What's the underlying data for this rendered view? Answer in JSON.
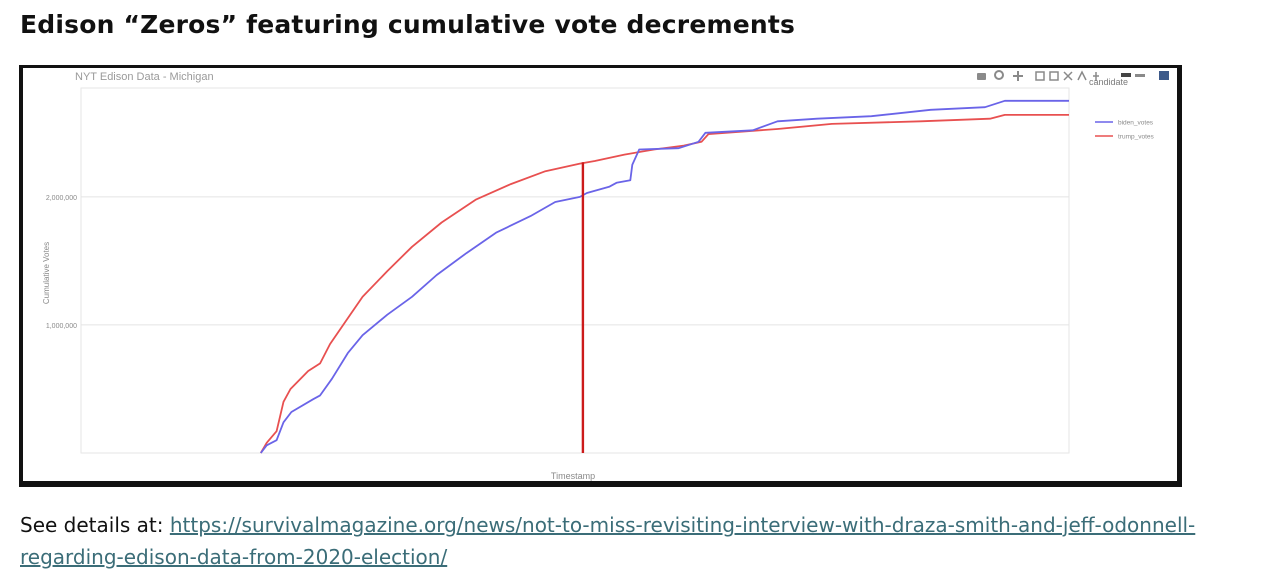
{
  "page": {
    "heading": "Edison “Zeros” featuring cumulative vote decrements",
    "footer_prefix": "See details at: ",
    "footer_link": "https://survivalmagazine.org/news/not-to-miss-revisiting-interview-with-draza-smith-and-jeff-odonnell-regarding-edison-data-from-2020-election/"
  },
  "chart_data": {
    "type": "line",
    "title": "NYT Edison Data - Michigan",
    "xlabel": "Timestamp",
    "ylabel": "Cumulative Votes",
    "ylim": [
      0,
      2850000
    ],
    "xlim": [
      0,
      100
    ],
    "yticks": [
      {
        "value": 1000000,
        "label": "1,000,000"
      },
      {
        "value": 2000000,
        "label": "2,000,000"
      }
    ],
    "grid": true,
    "legend_title": "candidate",
    "legend_position": "right",
    "series": [
      {
        "name": "biden_votes",
        "color": "#6a64e8",
        "points": [
          [
            18.2,
            0
          ],
          [
            18.8,
            60000
          ],
          [
            19.8,
            100000
          ],
          [
            20.5,
            240000
          ],
          [
            21.3,
            320000
          ],
          [
            23.5,
            420000
          ],
          [
            24.2,
            450000
          ],
          [
            25.4,
            580000
          ],
          [
            27.0,
            780000
          ],
          [
            28.5,
            920000
          ],
          [
            31.0,
            1080000
          ],
          [
            33.5,
            1220000
          ],
          [
            36.0,
            1390000
          ],
          [
            39.0,
            1560000
          ],
          [
            42.0,
            1720000
          ],
          [
            45.5,
            1850000
          ],
          [
            48.0,
            1960000
          ],
          [
            50.5,
            2000000
          ],
          [
            51.2,
            2030000
          ],
          [
            53.5,
            2080000
          ],
          [
            54.2,
            2110000
          ],
          [
            55.6,
            2130000
          ],
          [
            55.8,
            2250000
          ],
          [
            56.5,
            2370000
          ],
          [
            60.5,
            2380000
          ],
          [
            62.5,
            2430000
          ],
          [
            63.2,
            2500000
          ],
          [
            68.0,
            2520000
          ],
          [
            70.5,
            2590000
          ],
          [
            74.5,
            2610000
          ],
          [
            80.0,
            2630000
          ],
          [
            86.0,
            2680000
          ],
          [
            91.5,
            2700000
          ],
          [
            93.5,
            2750000
          ],
          [
            100.0,
            2750000
          ]
        ]
      },
      {
        "name": "trump_votes",
        "color": "#e85050",
        "points": [
          [
            18.2,
            0
          ],
          [
            18.8,
            80000
          ],
          [
            19.8,
            170000
          ],
          [
            20.5,
            400000
          ],
          [
            21.2,
            500000
          ],
          [
            23.0,
            640000
          ],
          [
            24.2,
            700000
          ],
          [
            25.2,
            850000
          ],
          [
            26.8,
            1030000
          ],
          [
            28.5,
            1220000
          ],
          [
            31.0,
            1420000
          ],
          [
            33.5,
            1610000
          ],
          [
            36.5,
            1800000
          ],
          [
            40.0,
            1980000
          ],
          [
            43.5,
            2100000
          ],
          [
            47.0,
            2200000
          ],
          [
            50.5,
            2260000
          ],
          [
            52.0,
            2280000
          ],
          [
            55.0,
            2330000
          ],
          [
            58.0,
            2370000
          ],
          [
            61.0,
            2400000
          ],
          [
            62.8,
            2430000
          ],
          [
            63.5,
            2490000
          ],
          [
            70.5,
            2530000
          ],
          [
            76.0,
            2570000
          ],
          [
            85.0,
            2590000
          ],
          [
            92.0,
            2610000
          ],
          [
            93.5,
            2640000
          ],
          [
            100.0,
            2640000
          ]
        ]
      }
    ],
    "annotations": [
      {
        "type": "vertical_drop",
        "series": "trump_votes",
        "x": 50.8,
        "from": 2270000,
        "to": 0,
        "color": "#cc1b1b"
      }
    ]
  }
}
